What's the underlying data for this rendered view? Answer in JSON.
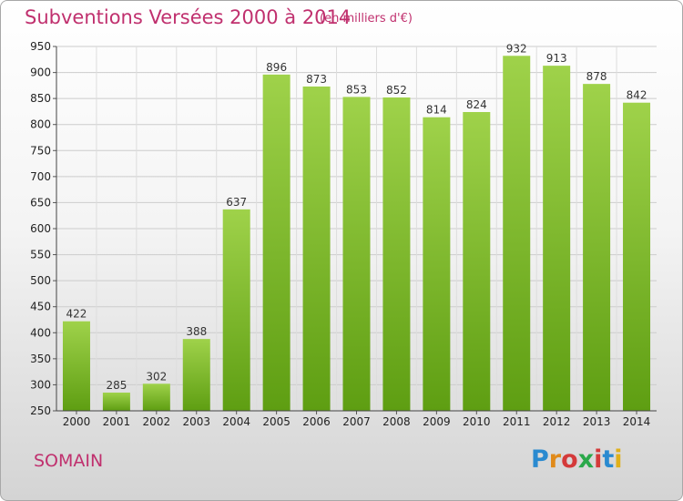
{
  "header": {
    "title": "Subventions Versées 2000 à 2014",
    "unit": "(en milliers d'€)"
  },
  "footer": {
    "commune": "SOMAIN",
    "logo": "Proxiti",
    "logo_colors": [
      "#2a8ad0",
      "#e08a1a",
      "#d43a3a",
      "#2aa84a",
      "#d43a3a",
      "#2a8ad0",
      "#e0b01a"
    ]
  },
  "colors": {
    "accent": "#c0306e",
    "bar_top": "#9fd24a",
    "bar_bottom": "#5e9e12",
    "grid": "#cccccc"
  },
  "chart_data": {
    "type": "bar",
    "title": "Subventions Versées 2000 à 2014",
    "unit": "(en milliers d'€)",
    "categories": [
      "2000",
      "2001",
      "2002",
      "2003",
      "2004",
      "2005",
      "2006",
      "2007",
      "2008",
      "2009",
      "2010",
      "2011",
      "2012",
      "2013",
      "2014"
    ],
    "values": [
      422,
      285,
      302,
      388,
      637,
      896,
      873,
      853,
      852,
      814,
      824,
      932,
      913,
      878,
      842
    ],
    "ylim": [
      250,
      950
    ],
    "yticks": [
      250,
      300,
      350,
      400,
      450,
      500,
      550,
      600,
      650,
      700,
      750,
      800,
      850,
      900,
      950
    ],
    "grid": true,
    "legend": "none"
  }
}
